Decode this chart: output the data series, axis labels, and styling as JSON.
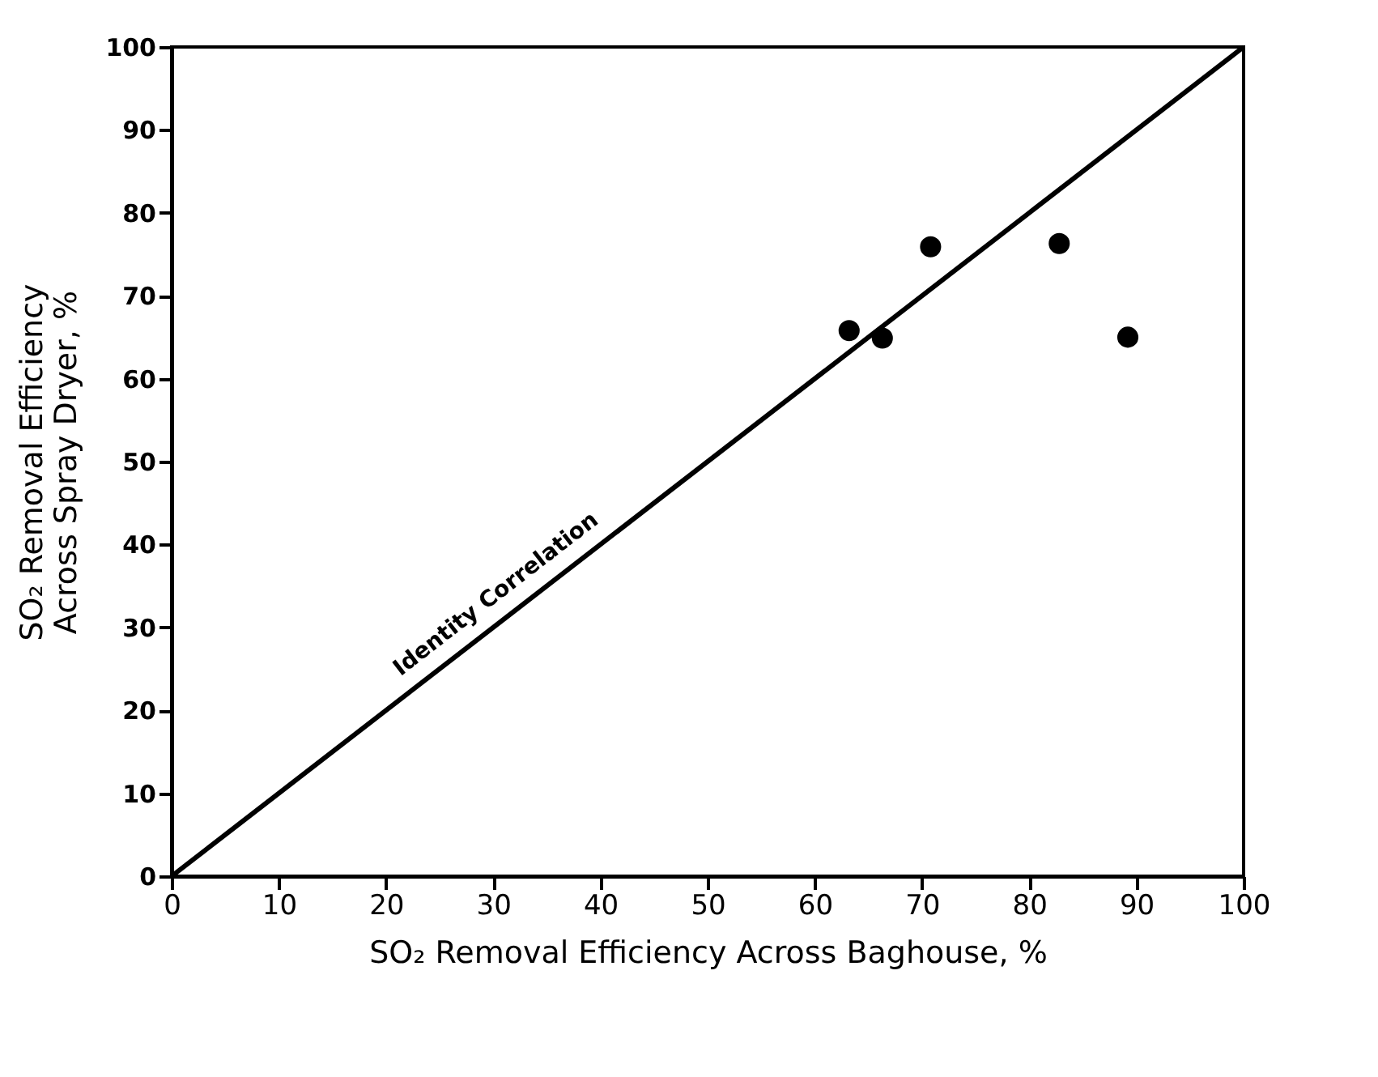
{
  "chart_data": {
    "type": "scatter",
    "xlabel": "SO₂ Removal Efficiency Across Baghouse, %",
    "ylabel": "SO₂ Removal Efficiency\nAcross Spray Dryer, %",
    "series": [
      {
        "color": "#000000",
        "marker": "circle",
        "x": [
          63.2,
          66.3,
          70.8,
          82.8,
          89.2
        ],
        "values": [
          65.8,
          64.9,
          75.9,
          76.3,
          65.0
        ]
      },
      {
        "type": "line",
        "marker": "none",
        "color": "#000000",
        "x": [
          0,
          100
        ],
        "values": [
          0,
          100
        ]
      }
    ],
    "annotations": [
      {
        "text": "Identity Correlation",
        "x": 22,
        "y": 23
      }
    ],
    "xlim": [
      0,
      100
    ],
    "ylim": [
      0,
      100
    ],
    "xticks": [
      0,
      10,
      20,
      30,
      40,
      50,
      60,
      70,
      80,
      90,
      100
    ],
    "yticks": [
      0,
      10,
      20,
      30,
      40,
      50,
      60,
      70,
      80,
      90,
      100
    ],
    "grid": false,
    "line_style": "solid"
  }
}
